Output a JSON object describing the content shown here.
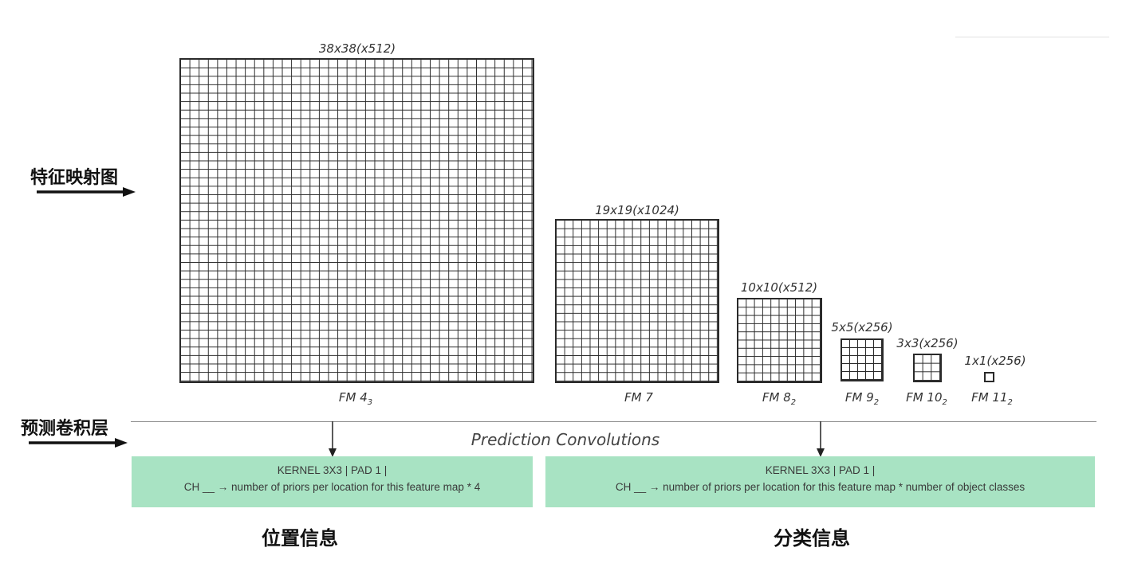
{
  "feature_maps": [
    {
      "size_label": "38x38(x512)",
      "fm_name": "FM 4",
      "fm_sub": "3",
      "cells": 38
    },
    {
      "size_label": "19x19(x1024)",
      "fm_name": "FM 7",
      "fm_sub": "",
      "cells": 19
    },
    {
      "size_label": "10x10(x512)",
      "fm_name": "FM 8",
      "fm_sub": "2",
      "cells": 10
    },
    {
      "size_label": "5x5(x256)",
      "fm_name": "FM 9",
      "fm_sub": "2",
      "cells": 5
    },
    {
      "size_label": "3x3(x256)",
      "fm_name": "FM 10",
      "fm_sub": "2",
      "cells": 3
    },
    {
      "size_label": "1x1(x256)",
      "fm_name": "FM 11",
      "fm_sub": "2",
      "cells": 1
    }
  ],
  "side_labels": {
    "feature_map": "特征映射图",
    "prediction_layer": "预测卷积层"
  },
  "prediction_title": "Prediction Convolutions",
  "boxes": {
    "location": {
      "line1": "KERNEL 3X3 | PAD 1 |",
      "line2": "CH __ → number of priors per location for this feature map * 4",
      "caption": "位置信息"
    },
    "classification": {
      "line1": "KERNEL 3X3 | PAD 1 |",
      "line2": "CH __ → number of priors per location for this feature map * number of object classes",
      "caption": "分类信息"
    }
  },
  "colors": {
    "box_fill": "#a8e3c3",
    "grid_line": "#2a2a2a"
  }
}
